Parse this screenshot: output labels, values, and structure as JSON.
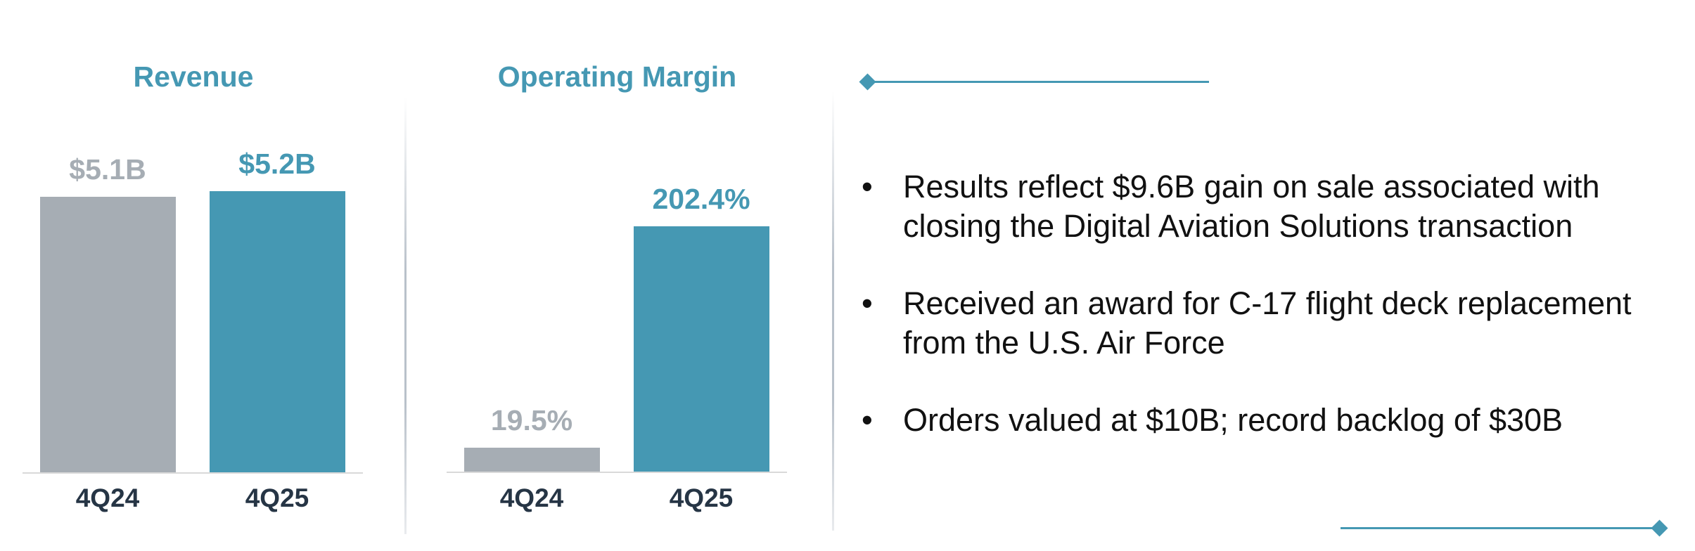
{
  "colors": {
    "accent": "#4598b3",
    "prior": "#a6adb4",
    "dark": "#263545"
  },
  "chart_data": [
    {
      "type": "bar",
      "title": "Revenue",
      "categories": [
        "4Q24",
        "4Q25"
      ],
      "values": [
        5.1,
        5.2
      ],
      "value_labels": [
        "$5.1B",
        "$5.2B"
      ],
      "unit": "$B",
      "ylim": [
        0,
        5.5
      ],
      "grid": false,
      "legend": "none"
    },
    {
      "type": "bar",
      "title": "Operating Margin",
      "categories": [
        "4Q24",
        "4Q25"
      ],
      "values": [
        19.5,
        202.4
      ],
      "value_labels": [
        "19.5%",
        "202.4%"
      ],
      "unit": "%",
      "ylim": [
        0,
        240
      ],
      "grid": false,
      "legend": "none"
    }
  ],
  "bullets": [
    {
      "marker": "•",
      "text": "Results reflect $9.6B gain on sale associated with closing the Digital Aviation Solutions transaction"
    },
    {
      "marker": "•",
      "text": "Received an award for C-17 flight deck replacement from the U.S. Air Force"
    },
    {
      "marker": "•",
      "text": "Orders valued at $10B; record backlog of $30B"
    }
  ]
}
